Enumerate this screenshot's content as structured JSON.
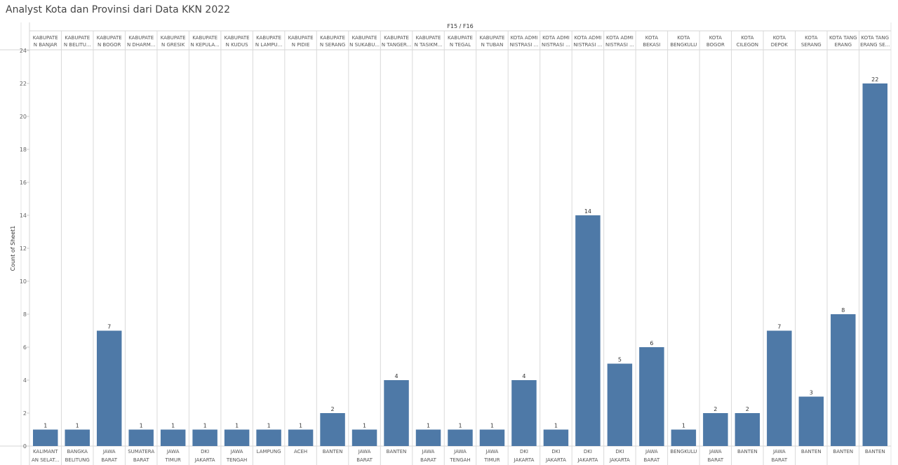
{
  "title": "Analyst Kota dan Provinsi dari Data KKN 2022",
  "chart_data": {
    "type": "bar",
    "col_header": "F15 / F16",
    "ylabel": "Count of Sheet1",
    "ylim": [
      0,
      24
    ],
    "yticks": [
      0,
      2,
      4,
      6,
      8,
      10,
      12,
      14,
      16,
      18,
      20,
      22,
      24
    ],
    "bar_color": "#4e79a7",
    "categories": [
      {
        "top": [
          "KABUPATE",
          "N BANJAR"
        ],
        "bottom": [
          "KALIMANT",
          "AN SELAT..."
        ],
        "value": 1
      },
      {
        "top": [
          "KABUPATE",
          "N BELITU..."
        ],
        "bottom": [
          "BANGKA",
          "BELITUNG"
        ],
        "value": 1
      },
      {
        "top": [
          "KABUPATE",
          "N BOGOR"
        ],
        "bottom": [
          "JAWA",
          "BARAT"
        ],
        "value": 7
      },
      {
        "top": [
          "KABUPATE",
          "N DHARM..."
        ],
        "bottom": [
          "SUMATERA",
          "BARAT"
        ],
        "value": 1
      },
      {
        "top": [
          "KABUPATE",
          "N GRESIK"
        ],
        "bottom": [
          "JAWA",
          "TIMUR"
        ],
        "value": 1
      },
      {
        "top": [
          "KABUPATE",
          "N KEPULA..."
        ],
        "bottom": [
          "DKI",
          "JAKARTA"
        ],
        "value": 1
      },
      {
        "top": [
          "KABUPATE",
          "N KUDUS"
        ],
        "bottom": [
          "JAWA",
          "TENGAH"
        ],
        "value": 1
      },
      {
        "top": [
          "KABUPATE",
          "N LAMPU..."
        ],
        "bottom": [
          "LAMPUNG"
        ],
        "value": 1
      },
      {
        "top": [
          "KABUPATE",
          "N PIDIE"
        ],
        "bottom": [
          "ACEH"
        ],
        "value": 1
      },
      {
        "top": [
          "KABUPATE",
          "N SERANG"
        ],
        "bottom": [
          "BANTEN"
        ],
        "value": 2
      },
      {
        "top": [
          "KABUPATE",
          "N SUKABU..."
        ],
        "bottom": [
          "JAWA",
          "BARAT"
        ],
        "value": 1
      },
      {
        "top": [
          "KABUPATE",
          "N TANGER..."
        ],
        "bottom": [
          "BANTEN"
        ],
        "value": 4
      },
      {
        "top": [
          "KABUPATE",
          "N TASIKM..."
        ],
        "bottom": [
          "JAWA",
          "BARAT"
        ],
        "value": 1
      },
      {
        "top": [
          "KABUPATE",
          "N TEGAL"
        ],
        "bottom": [
          "JAWA",
          "TENGAH"
        ],
        "value": 1
      },
      {
        "top": [
          "KABUPATE",
          "N TUBAN"
        ],
        "bottom": [
          "JAWA",
          "TIMUR"
        ],
        "value": 1
      },
      {
        "top": [
          "KOTA ADMI",
          "NISTRASI ..."
        ],
        "bottom": [
          "DKI",
          "JAKARTA"
        ],
        "value": 4
      },
      {
        "top": [
          "KOTA ADMI",
          "NISTRASI ..."
        ],
        "bottom": [
          "DKI",
          "JAKARTA"
        ],
        "value": 1
      },
      {
        "top": [
          "KOTA ADMI",
          "NISTRASI ..."
        ],
        "bottom": [
          "DKI",
          "JAKARTA"
        ],
        "value": 14
      },
      {
        "top": [
          "KOTA ADMI",
          "NISTRASI ..."
        ],
        "bottom": [
          "DKI",
          "JAKARTA"
        ],
        "value": 5
      },
      {
        "top": [
          "KOTA",
          "BEKASI"
        ],
        "bottom": [
          "JAWA",
          "BARAT"
        ],
        "value": 6
      },
      {
        "top": [
          "KOTA",
          "BENGKULU"
        ],
        "bottom": [
          "BENGKULU"
        ],
        "value": 1
      },
      {
        "top": [
          "KOTA",
          "BOGOR"
        ],
        "bottom": [
          "JAWA",
          "BARAT"
        ],
        "value": 2
      },
      {
        "top": [
          "KOTA",
          "CILEGON"
        ],
        "bottom": [
          "BANTEN"
        ],
        "value": 2
      },
      {
        "top": [
          "KOTA",
          "DEPOK"
        ],
        "bottom": [
          "JAWA",
          "BARAT"
        ],
        "value": 7
      },
      {
        "top": [
          "KOTA",
          "SERANG"
        ],
        "bottom": [
          "BANTEN"
        ],
        "value": 3
      },
      {
        "top": [
          "KOTA TANG",
          "ERANG"
        ],
        "bottom": [
          "BANTEN"
        ],
        "value": 8
      },
      {
        "top": [
          "KOTA TANG",
          "ERANG SE..."
        ],
        "bottom": [
          "BANTEN"
        ],
        "value": 22
      }
    ]
  }
}
